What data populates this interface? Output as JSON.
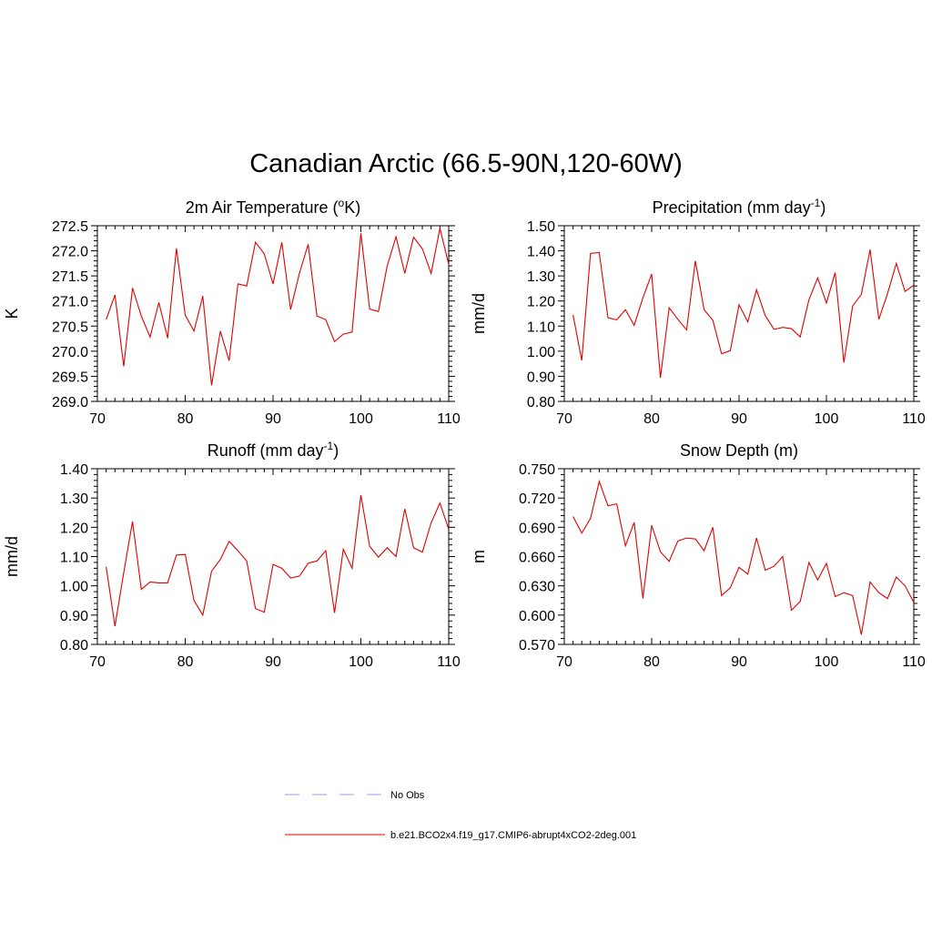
{
  "title": "Canadian Arctic (66.5-90N,120-60W)",
  "colors": {
    "model_line": "#e00000",
    "obs_line": "#9a9af0",
    "axis": "#000000"
  },
  "legend": [
    {
      "label": "No Obs",
      "style": "dashed",
      "color": "#9a9af0"
    },
    {
      "label": "b.e21.BCO2x4.f19_g17.CMIP6-abrupt4xCO2-2deg.001",
      "style": "solid",
      "color": "#e00000"
    }
  ],
  "chart_data": [
    {
      "type": "line",
      "title": "2m Air Temperature (",
      "title_sup": "o",
      "title_end": "K)",
      "ylabel": "K",
      "xlim": [
        70,
        110
      ],
      "ylim": [
        269.0,
        272.5
      ],
      "xticks": [
        70,
        80,
        90,
        100,
        110
      ],
      "yticks": [
        269.0,
        269.5,
        270.0,
        270.5,
        271.0,
        271.5,
        272.0,
        272.5
      ],
      "ydecimals": 1,
      "x": [
        71,
        72,
        73,
        74,
        75,
        76,
        77,
        78,
        79,
        80,
        81,
        82,
        83,
        84,
        85,
        86,
        87,
        88,
        89,
        90,
        91,
        92,
        93,
        94,
        95,
        96,
        97,
        98,
        99,
        100,
        101,
        102,
        103,
        104,
        105,
        106,
        107,
        108,
        109,
        110
      ],
      "series": [
        {
          "name": "b.e21.BCO2x4.f19_g17.CMIP6-abrupt4xCO2-2deg.001",
          "values": [
            270.63,
            271.12,
            269.7,
            271.26,
            270.7,
            270.28,
            270.97,
            270.26,
            272.05,
            270.72,
            270.4,
            271.1,
            269.32,
            270.4,
            269.81,
            271.34,
            271.3,
            272.17,
            271.94,
            271.34,
            272.17,
            270.83,
            271.55,
            272.13,
            270.7,
            270.63,
            270.19,
            270.34,
            270.38,
            272.35,
            270.84,
            270.79,
            271.7,
            272.28,
            271.55,
            272.27,
            272.04,
            271.55,
            272.45,
            271.73
          ]
        }
      ]
    },
    {
      "type": "line",
      "title": "Precipitation (mm day",
      "title_sup": "-1",
      "title_end": ")",
      "ylabel": "mm/d",
      "xlim": [
        70,
        110
      ],
      "ylim": [
        0.8,
        1.5
      ],
      "xticks": [
        70,
        80,
        90,
        100,
        110
      ],
      "yticks": [
        0.8,
        0.9,
        1.0,
        1.1,
        1.2,
        1.3,
        1.4,
        1.5
      ],
      "ydecimals": 2,
      "x": [
        71,
        72,
        73,
        74,
        75,
        76,
        77,
        78,
        79,
        80,
        81,
        82,
        83,
        84,
        85,
        86,
        87,
        88,
        89,
        90,
        91,
        92,
        93,
        94,
        95,
        96,
        97,
        98,
        99,
        100,
        101,
        102,
        103,
        104,
        105,
        106,
        107,
        108,
        109,
        110
      ],
      "series": [
        {
          "name": "b.e21.BCO2x4.f19_g17.CMIP6-abrupt4xCO2-2deg.001",
          "values": [
            1.145,
            0.963,
            1.39,
            1.393,
            1.133,
            1.125,
            1.165,
            1.103,
            1.213,
            1.307,
            0.894,
            1.173,
            1.127,
            1.085,
            1.36,
            1.165,
            1.123,
            0.99,
            1.002,
            1.185,
            1.117,
            1.245,
            1.142,
            1.087,
            1.095,
            1.09,
            1.057,
            1.205,
            1.292,
            1.192,
            1.313,
            0.955,
            1.18,
            1.227,
            1.405,
            1.127,
            1.23,
            1.35,
            1.238,
            1.263
          ]
        }
      ]
    },
    {
      "type": "line",
      "title": "Runoff (mm day",
      "title_sup": "-1",
      "title_end": ")",
      "ylabel": "mm/d",
      "xlim": [
        70,
        110
      ],
      "ylim": [
        0.8,
        1.4
      ],
      "xticks": [
        70,
        80,
        90,
        100,
        110
      ],
      "yticks": [
        0.8,
        0.9,
        1.0,
        1.1,
        1.2,
        1.3,
        1.4
      ],
      "ydecimals": 2,
      "x": [
        71,
        72,
        73,
        74,
        75,
        76,
        77,
        78,
        79,
        80,
        81,
        82,
        83,
        84,
        85,
        86,
        87,
        88,
        89,
        90,
        91,
        92,
        93,
        94,
        95,
        96,
        97,
        98,
        99,
        100,
        101,
        102,
        103,
        104,
        105,
        106,
        107,
        108,
        109,
        110
      ],
      "series": [
        {
          "name": "b.e21.BCO2x4.f19_g17.CMIP6-abrupt4xCO2-2deg.001",
          "values": [
            1.065,
            0.862,
            1.045,
            1.22,
            0.988,
            1.013,
            1.01,
            1.01,
            1.105,
            1.107,
            0.95,
            0.9,
            1.05,
            1.09,
            1.152,
            1.12,
            1.085,
            0.922,
            0.91,
            1.073,
            1.06,
            1.027,
            1.033,
            1.077,
            1.085,
            1.12,
            0.908,
            1.125,
            1.06,
            1.31,
            1.135,
            1.098,
            1.13,
            1.1,
            1.263,
            1.13,
            1.115,
            1.215,
            1.283,
            1.193
          ]
        }
      ]
    },
    {
      "type": "line",
      "title": "Snow Depth (m)",
      "title_sup": "",
      "title_end": "",
      "ylabel": "m",
      "xlim": [
        70,
        110
      ],
      "ylim": [
        0.57,
        0.75
      ],
      "xticks": [
        70,
        80,
        90,
        100,
        110
      ],
      "yticks": [
        0.57,
        0.6,
        0.63,
        0.66,
        0.69,
        0.72,
        0.75
      ],
      "ydecimals": 3,
      "x": [
        71,
        72,
        73,
        74,
        75,
        76,
        77,
        78,
        79,
        80,
        81,
        82,
        83,
        84,
        85,
        86,
        87,
        88,
        89,
        90,
        91,
        92,
        93,
        94,
        95,
        96,
        97,
        98,
        99,
        100,
        101,
        102,
        103,
        104,
        105,
        106,
        107,
        108,
        109,
        110
      ],
      "series": [
        {
          "name": "b.e21.BCO2x4.f19_g17.CMIP6-abrupt4xCO2-2deg.001",
          "values": [
            0.701,
            0.684,
            0.699,
            0.737,
            0.712,
            0.714,
            0.671,
            0.695,
            0.617,
            0.692,
            0.665,
            0.655,
            0.676,
            0.679,
            0.678,
            0.666,
            0.69,
            0.62,
            0.628,
            0.649,
            0.642,
            0.679,
            0.646,
            0.65,
            0.66,
            0.605,
            0.614,
            0.654,
            0.636,
            0.653,
            0.619,
            0.623,
            0.62,
            0.58,
            0.634,
            0.623,
            0.617,
            0.639,
            0.63,
            0.613
          ]
        }
      ]
    }
  ]
}
